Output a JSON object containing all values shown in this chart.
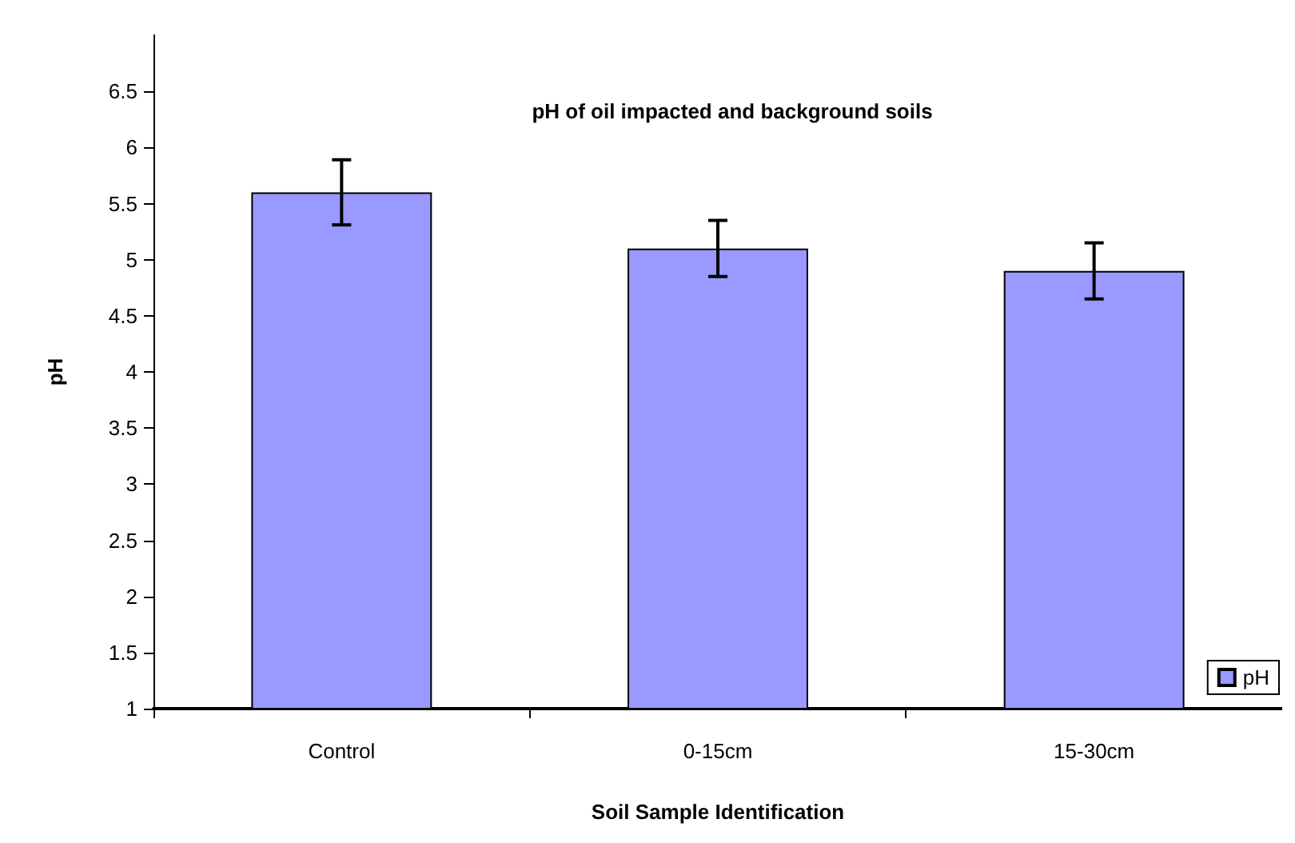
{
  "chart_data": {
    "type": "bar",
    "title": "pH of oil impacted and background soils",
    "xlabel": "Soil Sample Identification",
    "ylabel": "pH",
    "categories": [
      "Control",
      "0-15cm",
      "15-30cm"
    ],
    "series": [
      {
        "name": "pH",
        "color": "#9999ff",
        "values": [
          5.6,
          5.1,
          4.9
        ],
        "errors": [
          0.29,
          0.25,
          0.25
        ]
      }
    ],
    "ylim": [
      1,
      7
    ],
    "yticks": [
      1,
      1.5,
      2,
      2.5,
      3,
      3.5,
      4,
      4.5,
      5,
      5.5,
      6,
      6.5
    ],
    "grid": false,
    "legend": "bottom right"
  }
}
